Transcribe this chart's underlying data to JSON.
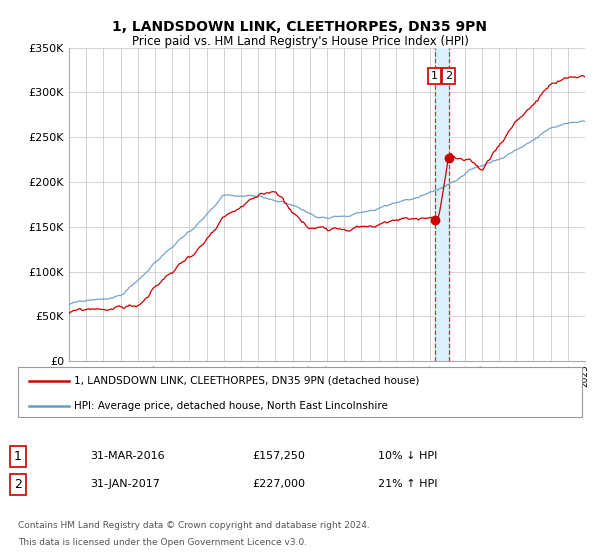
{
  "title": "1, LANDSDOWN LINK, CLEETHORPES, DN35 9PN",
  "subtitle": "Price paid vs. HM Land Registry's House Price Index (HPI)",
  "legend_line1": "1, LANDSDOWN LINK, CLEETHORPES, DN35 9PN (detached house)",
  "legend_line2": "HPI: Average price, detached house, North East Lincolnshire",
  "footnote1": "Contains HM Land Registry data © Crown copyright and database right 2024.",
  "footnote2": "This data is licensed under the Open Government Licence v3.0.",
  "transaction1_label": "1",
  "transaction1_date": "31-MAR-2016",
  "transaction1_price": "£157,250",
  "transaction1_hpi": "10% ↓ HPI",
  "transaction1_year": 2016.25,
  "transaction1_value": 157250,
  "transaction2_label": "2",
  "transaction2_date": "31-JAN-2017",
  "transaction2_price": "£227,000",
  "transaction2_hpi": "21% ↑ HPI",
  "transaction2_year": 2017.08,
  "transaction2_value": 227000,
  "red_color": "#cc0000",
  "blue_color": "#6699cc",
  "highlight_color": "#ddeeff",
  "ylim_min": 0,
  "ylim_max": 350000,
  "xlim_min": 1995,
  "xlim_max": 2025,
  "background_color": "#ffffff",
  "grid_color": "#cccccc",
  "hpi_seed": 42,
  "prop_seed": 99
}
